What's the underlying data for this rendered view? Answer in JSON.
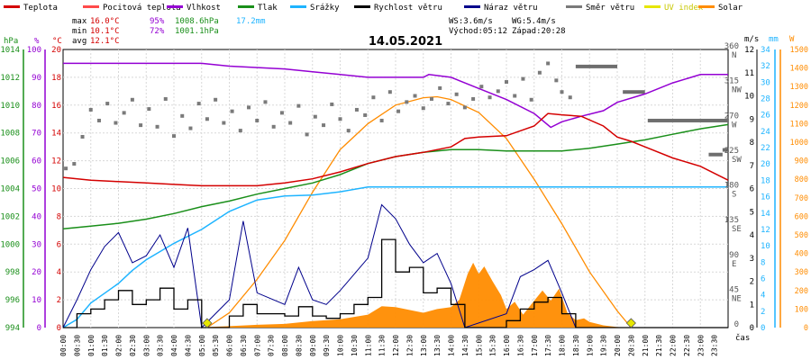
{
  "chart_data": {
    "type": "line",
    "title": "14.05.2021",
    "legend": [
      {
        "name": "Teplota",
        "color": "#d40000"
      },
      {
        "name": "Pocitová teplota",
        "color": "#ff4a4a"
      },
      {
        "name": "Vlhkost",
        "color": "#9400d3"
      },
      {
        "name": "Tlak",
        "color": "#1a8f1a"
      },
      {
        "name": "Srážky",
        "color": "#1eb4ff"
      },
      {
        "name": "Rychlost větru",
        "color": "#000000"
      },
      {
        "name": "Náraz větru",
        "color": "#00008b"
      },
      {
        "name": "Směr větru",
        "color": "#7a7a7a"
      },
      {
        "name": "UV index",
        "color": "#e6e600"
      },
      {
        "name": "Solar",
        "color": "#ff8c00"
      }
    ],
    "stats": {
      "max": {
        "label": "max",
        "temp": "16.0°C",
        "hum": "95%",
        "press": "1008.6hPa",
        "rain": "17.2mm"
      },
      "min": {
        "label": "min",
        "temp": "10.1°C",
        "hum": "72%",
        "press": "1001.1hPa"
      },
      "avg": {
        "label": "avg",
        "temp": "12.1°C"
      }
    },
    "wind_info": {
      "ws": "WS:3.6m/s",
      "wg": "WG:5.4m/s",
      "sunrise": "Východ:05:12",
      "sunset": "Západ:20:28"
    },
    "axes": {
      "hpa": {
        "unit": "hPa",
        "ticks": [
          "994",
          "996",
          "998",
          "1000",
          "1002",
          "1004",
          "1006",
          "1008",
          "1010",
          "1012",
          "1014"
        ]
      },
      "pct": {
        "unit": "%",
        "ticks": [
          "0",
          "10",
          "20",
          "30",
          "40",
          "50",
          "60",
          "70",
          "80",
          "90",
          "100"
        ]
      },
      "temp": {
        "unit": "°C",
        "ticks": [
          "0",
          "2",
          "4",
          "6",
          "8",
          "10",
          "12",
          "14",
          "16",
          "18",
          "20"
        ]
      },
      "dir": {
        "ticks": [
          {
            "v": 0,
            "l1": "0",
            "l2": ""
          },
          {
            "v": 45,
            "l1": "45",
            "l2": "NE"
          },
          {
            "v": 90,
            "l1": "90",
            "l2": "E"
          },
          {
            "v": 135,
            "l1": "135",
            "l2": "SE"
          },
          {
            "v": 180,
            "l1": "180",
            "l2": "S"
          },
          {
            "v": 225,
            "l1": "225",
            "l2": "SW"
          },
          {
            "v": 270,
            "l1": "270",
            "l2": "W"
          },
          {
            "v": 315,
            "l1": "315",
            "l2": "NW"
          },
          {
            "v": 360,
            "l1": "360",
            "l2": "N"
          }
        ]
      },
      "ms": {
        "unit": "m/s",
        "ticks": [
          "0",
          "1",
          "2",
          "3",
          "4",
          "5",
          "6",
          "7",
          "8",
          "9",
          "10",
          "11",
          "12"
        ]
      },
      "mm": {
        "unit": "mm",
        "ticks": [
          "0",
          "2",
          "4",
          "6",
          "8",
          "10",
          "12",
          "14",
          "16",
          "18",
          "20",
          "22",
          "24",
          "26",
          "28",
          "30",
          "32",
          "34"
        ]
      },
      "w": {
        "unit": "W",
        "ticks": [
          "0",
          "100",
          "200",
          "300",
          "400",
          "500",
          "600",
          "700",
          "800",
          "900",
          "1000",
          "1100",
          "1200",
          "1300",
          "1400",
          "1500"
        ]
      },
      "x_label": "čas",
      "x_ticks": [
        "00:00",
        "00:30",
        "01:00",
        "01:30",
        "02:00",
        "02:30",
        "03:00",
        "03:30",
        "04:00",
        "04:30",
        "05:00",
        "05:30",
        "06:00",
        "06:30",
        "07:00",
        "07:30",
        "08:00",
        "08:30",
        "09:00",
        "09:30",
        "10:00",
        "10:30",
        "11:00",
        "11:30",
        "12:00",
        "12:30",
        "13:00",
        "13:30",
        "14:00",
        "14:30",
        "15:00",
        "15:30",
        "16:00",
        "16:30",
        "17:00",
        "17:30",
        "18:00",
        "18:30",
        "19:00",
        "19:30",
        "20:00",
        "20:30",
        "21:00",
        "21:30",
        "22:00",
        "22:30",
        "23:00",
        "23:30"
      ]
    },
    "series": {
      "temperature": [
        [
          0,
          10.8
        ],
        [
          1,
          10.6
        ],
        [
          2,
          10.5
        ],
        [
          3,
          10.4
        ],
        [
          4,
          10.3
        ],
        [
          5,
          10.2
        ],
        [
          6,
          10.2
        ],
        [
          7,
          10.2
        ],
        [
          8,
          10.4
        ],
        [
          9,
          10.7
        ],
        [
          10,
          11.2
        ],
        [
          11,
          11.8
        ],
        [
          12,
          12.3
        ],
        [
          13,
          12.6
        ],
        [
          14,
          13
        ],
        [
          14.5,
          13.6
        ],
        [
          15,
          13.7
        ],
        [
          16,
          13.8
        ],
        [
          17,
          14.5
        ],
        [
          17.5,
          15.4
        ],
        [
          18,
          15.3
        ],
        [
          18.7,
          15.2
        ],
        [
          19.5,
          14.5
        ],
        [
          20,
          13.7
        ],
        [
          20.5,
          13.4
        ],
        [
          21,
          13.0
        ],
        [
          22,
          12.2
        ],
        [
          23,
          11.6
        ],
        [
          24,
          10.6
        ]
      ],
      "humidity": [
        [
          0,
          95
        ],
        [
          2,
          95
        ],
        [
          4,
          95
        ],
        [
          5,
          95
        ],
        [
          6,
          94
        ],
        [
          8,
          93
        ],
        [
          9,
          92
        ],
        [
          10,
          91
        ],
        [
          11,
          90
        ],
        [
          12,
          90
        ],
        [
          13,
          90
        ],
        [
          13.2,
          91
        ],
        [
          14,
          90
        ],
        [
          15,
          86
        ],
        [
          16,
          82
        ],
        [
          17,
          77
        ],
        [
          17.6,
          72
        ],
        [
          18,
          74
        ],
        [
          18.7,
          76
        ],
        [
          19.5,
          78
        ],
        [
          20,
          81
        ],
        [
          21,
          84
        ],
        [
          22,
          88
        ],
        [
          23,
          91
        ],
        [
          24,
          91
        ]
      ],
      "pressure": [
        [
          0,
          1001.1
        ],
        [
          1,
          1001.3
        ],
        [
          2,
          1001.5
        ],
        [
          3,
          1001.8
        ],
        [
          4,
          1002.2
        ],
        [
          5,
          1002.7
        ],
        [
          6,
          1003.1
        ],
        [
          7,
          1003.6
        ],
        [
          8,
          1004.0
        ],
        [
          9,
          1004.4
        ],
        [
          10,
          1005
        ],
        [
          11,
          1005.8
        ],
        [
          12,
          1006.3
        ],
        [
          13,
          1006.6
        ],
        [
          14,
          1006.8
        ],
        [
          15,
          1006.8
        ],
        [
          16,
          1006.7
        ],
        [
          17,
          1006.7
        ],
        [
          18,
          1006.7
        ],
        [
          19,
          1006.9
        ],
        [
          20,
          1007.2
        ],
        [
          21,
          1007.5
        ],
        [
          22,
          1007.9
        ],
        [
          23,
          1008.3
        ],
        [
          24,
          1008.6
        ]
      ],
      "rain": [
        [
          0,
          0
        ],
        [
          0.5,
          1
        ],
        [
          1,
          3
        ],
        [
          1.5,
          4.2
        ],
        [
          2,
          5.4
        ],
        [
          2.5,
          7
        ],
        [
          3,
          8.3
        ],
        [
          4,
          10.3
        ],
        [
          5,
          12
        ],
        [
          6,
          14.2
        ],
        [
          7,
          15.6
        ],
        [
          8,
          16.1
        ],
        [
          9,
          16.2
        ],
        [
          10,
          16.6
        ],
        [
          11,
          17.2
        ],
        [
          24,
          17.2
        ]
      ],
      "wind_speed": [
        [
          0,
          0
        ],
        [
          0.5,
          0.6
        ],
        [
          1,
          0.8
        ],
        [
          1.5,
          1.2
        ],
        [
          2,
          1.6
        ],
        [
          2.5,
          1.0
        ],
        [
          3,
          1.2
        ],
        [
          3.5,
          1.7
        ],
        [
          4,
          0.8
        ],
        [
          4.5,
          1.2
        ],
        [
          5,
          0.0
        ],
        [
          6,
          0.5
        ],
        [
          6.5,
          1.0
        ],
        [
          7,
          0.6
        ],
        [
          8,
          0.5
        ],
        [
          8.5,
          0.9
        ],
        [
          9,
          0.5
        ],
        [
          9.5,
          0.4
        ],
        [
          10,
          0.6
        ],
        [
          10.5,
          1.0
        ],
        [
          11,
          1.3
        ],
        [
          11.5,
          3.8
        ],
        [
          12,
          2.4
        ],
        [
          12.5,
          2.6
        ],
        [
          13,
          1.5
        ],
        [
          13.5,
          1.7
        ],
        [
          14,
          1.0
        ],
        [
          14.5,
          0.0
        ],
        [
          16,
          0.3
        ],
        [
          16.5,
          0.8
        ],
        [
          17,
          1.1
        ],
        [
          17.5,
          1.3
        ],
        [
          18,
          0.6
        ],
        [
          18.5,
          0.0
        ],
        [
          24,
          0.0
        ]
      ],
      "wind_gust": [
        [
          0,
          0
        ],
        [
          0.5,
          1.2
        ],
        [
          1,
          2.5
        ],
        [
          1.5,
          3.5
        ],
        [
          2,
          4.1
        ],
        [
          2.5,
          2.8
        ],
        [
          3,
          3.1
        ],
        [
          3.5,
          4.0
        ],
        [
          4,
          2.6
        ],
        [
          4.5,
          4.3
        ],
        [
          5,
          0.0
        ],
        [
          6,
          1.2
        ],
        [
          6.5,
          4.6
        ],
        [
          7,
          1.5
        ],
        [
          8,
          1.0
        ],
        [
          8.5,
          2.6
        ],
        [
          9,
          1.2
        ],
        [
          9.5,
          1.0
        ],
        [
          10,
          1.6
        ],
        [
          10.5,
          2.3
        ],
        [
          11,
          3.0
        ],
        [
          11.5,
          5.3
        ],
        [
          12,
          4.7
        ],
        [
          12.5,
          3.6
        ],
        [
          13,
          2.8
        ],
        [
          13.5,
          3.2
        ],
        [
          14,
          1.9
        ],
        [
          14.5,
          0.0
        ],
        [
          16,
          0.6
        ],
        [
          16.5,
          2.2
        ],
        [
          17,
          2.5
        ],
        [
          17.5,
          2.9
        ],
        [
          18,
          1.5
        ],
        [
          18.5,
          0.0
        ],
        [
          24,
          0.0
        ]
      ],
      "wind_dir_points": [
        [
          0.1,
          206
        ],
        [
          0.4,
          212
        ],
        [
          0.7,
          247
        ],
        [
          1.0,
          282
        ],
        [
          1.3,
          268
        ],
        [
          1.6,
          290
        ],
        [
          1.9,
          265
        ],
        [
          2.2,
          278
        ],
        [
          2.5,
          295
        ],
        [
          2.8,
          262
        ],
        [
          3.1,
          283
        ],
        [
          3.4,
          260
        ],
        [
          3.7,
          296
        ],
        [
          4.0,
          248
        ],
        [
          4.3,
          274
        ],
        [
          4.6,
          258
        ],
        [
          4.9,
          290
        ],
        [
          5.2,
          270
        ],
        [
          5.5,
          295
        ],
        [
          5.8,
          265
        ],
        [
          6.1,
          280
        ],
        [
          6.4,
          255
        ],
        [
          6.7,
          285
        ],
        [
          7.0,
          268
        ],
        [
          7.3,
          292
        ],
        [
          7.6,
          260
        ],
        [
          7.9,
          278
        ],
        [
          8.2,
          265
        ],
        [
          8.5,
          287
        ],
        [
          8.8,
          250
        ],
        [
          9.1,
          273
        ],
        [
          9.4,
          262
        ],
        [
          9.7,
          289
        ],
        [
          10.0,
          270
        ],
        [
          10.3,
          255
        ],
        [
          10.6,
          282
        ],
        [
          10.9,
          275
        ],
        [
          11.2,
          298
        ],
        [
          11.5,
          268
        ],
        [
          11.8,
          305
        ],
        [
          12.1,
          280
        ],
        [
          12.4,
          292
        ],
        [
          12.7,
          300
        ],
        [
          13.0,
          284
        ],
        [
          13.3,
          296
        ],
        [
          13.6,
          310
        ],
        [
          13.9,
          290
        ],
        [
          14.2,
          302
        ],
        [
          14.5,
          285
        ],
        [
          14.8,
          296
        ],
        [
          15.1,
          312
        ],
        [
          15.4,
          298
        ],
        [
          15.7,
          306
        ],
        [
          16.0,
          318
        ],
        [
          16.3,
          300
        ],
        [
          16.6,
          322
        ],
        [
          16.9,
          295
        ],
        [
          17.2,
          330
        ],
        [
          17.5,
          342
        ],
        [
          17.8,
          320
        ],
        [
          18.0,
          305
        ],
        [
          18.3,
          298
        ]
      ],
      "wind_dir_bars": [
        [
          18.5,
          20.0,
          338
        ],
        [
          20.2,
          21.0,
          305
        ],
        [
          21.1,
          24.0,
          268
        ],
        [
          23.3,
          23.8,
          224
        ],
        [
          23.8,
          24.0,
          230
        ]
      ],
      "solar": [
        [
          5,
          2
        ],
        [
          6,
          8
        ],
        [
          7,
          15
        ],
        [
          8,
          20
        ],
        [
          9,
          35
        ],
        [
          10,
          45
        ],
        [
          11,
          70
        ],
        [
          11.5,
          115
        ],
        [
          12,
          110
        ],
        [
          12.5,
          95
        ],
        [
          13,
          80
        ],
        [
          13.5,
          100
        ],
        [
          14,
          110
        ],
        [
          14.3,
          150
        ],
        [
          14.6,
          290
        ],
        [
          14.8,
          350
        ],
        [
          15,
          290
        ],
        [
          15.2,
          330
        ],
        [
          15.5,
          250
        ],
        [
          15.8,
          175
        ],
        [
          16,
          100
        ],
        [
          16.3,
          140
        ],
        [
          16.6,
          70
        ],
        [
          17,
          145
        ],
        [
          17.3,
          200
        ],
        [
          17.6,
          145
        ],
        [
          17.9,
          210
        ],
        [
          18.2,
          80
        ],
        [
          18.5,
          40
        ],
        [
          18.8,
          50
        ],
        [
          19,
          30
        ],
        [
          19.5,
          12
        ],
        [
          20,
          3
        ],
        [
          20.5,
          0
        ]
      ],
      "solar_theoretical": [
        [
          5.2,
          0
        ],
        [
          6,
          80
        ],
        [
          7,
          260
        ],
        [
          8,
          470
        ],
        [
          9,
          730
        ],
        [
          10,
          960
        ],
        [
          11,
          1100
        ],
        [
          12,
          1200
        ],
        [
          13,
          1240
        ],
        [
          13.5,
          1245
        ],
        [
          14,
          1230
        ],
        [
          15,
          1160
        ],
        [
          16,
          1020
        ],
        [
          17,
          800
        ],
        [
          18,
          560
        ],
        [
          19,
          300
        ],
        [
          20,
          90
        ],
        [
          20.5,
          0
        ]
      ],
      "uv_markers": [
        [
          5.2,
          0
        ],
        [
          20.5,
          0
        ]
      ]
    }
  }
}
